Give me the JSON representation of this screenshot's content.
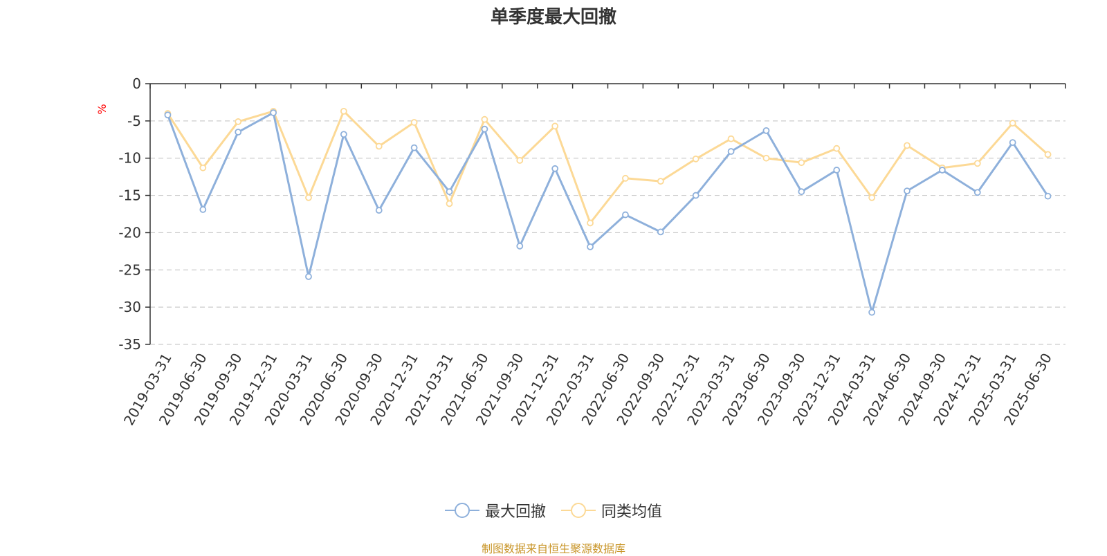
{
  "colors": {
    "series_max_drawdown": "#8eb0db",
    "series_peer_average": "#fcd996",
    "axis": "#333333",
    "grid": "#cccccc",
    "unit": "#ff0000",
    "source": "#c9962a"
  },
  "legend": {
    "items": [
      "最大回撤",
      "同类均值"
    ]
  },
  "source_note": "制图数据来自恒生聚源数据库",
  "chart_data": {
    "type": "line",
    "title": "单季度最大回撤",
    "ylabel": "%",
    "xlabel": "",
    "ylim": [
      -35,
      0
    ],
    "yticks": [
      0,
      -5,
      -10,
      -15,
      -20,
      -25,
      -30,
      -35
    ],
    "grid": true,
    "legend_position": "bottom",
    "categories": [
      "2019-03-31",
      "2019-06-30",
      "2019-09-30",
      "2019-12-31",
      "2020-03-31",
      "2020-06-30",
      "2020-09-30",
      "2020-12-31",
      "2021-03-31",
      "2021-06-30",
      "2021-09-30",
      "2021-12-31",
      "2022-03-31",
      "2022-06-30",
      "2022-09-30",
      "2022-12-31",
      "2023-03-31",
      "2023-06-30",
      "2023-09-30",
      "2023-12-31",
      "2024-03-31",
      "2024-06-30",
      "2024-09-30",
      "2024-12-31",
      "2025-03-31",
      "2025-06-30"
    ],
    "series": [
      {
        "name": "最大回撤",
        "values": [
          -4.2,
          -16.9,
          -6.5,
          -3.9,
          -25.9,
          -6.8,
          -17.0,
          -8.6,
          -14.5,
          -6.1,
          -21.8,
          -11.4,
          -21.9,
          -17.6,
          -19.9,
          -15.0,
          -9.1,
          -6.3,
          -14.5,
          -11.6,
          -30.7,
          -14.4,
          -11.6,
          -14.6,
          -7.9,
          -15.1
        ]
      },
      {
        "name": "同类均值",
        "values": [
          -4.0,
          -11.3,
          -5.1,
          -3.7,
          -15.3,
          -3.7,
          -8.4,
          -5.2,
          -16.1,
          -4.8,
          -10.3,
          -5.7,
          -18.7,
          -12.7,
          -13.1,
          -10.1,
          -7.4,
          -10.0,
          -10.6,
          -8.7,
          -15.3,
          -8.3,
          -11.3,
          -10.7,
          -5.3,
          -9.5
        ]
      }
    ]
  }
}
